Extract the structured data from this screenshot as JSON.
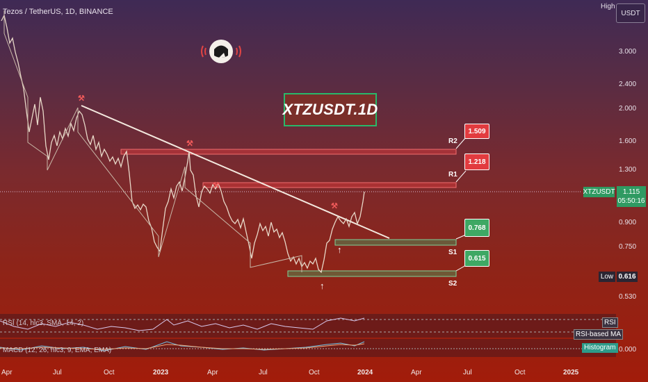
{
  "symbol_title": "Tezos / TetherUS, 1D, BINANCE",
  "scale": {
    "high_label": "High",
    "unit": "USDT",
    "low_label": "Low",
    "low_value": "0.616"
  },
  "y_ticks": [
    "3.000",
    "2.400",
    "2.000",
    "1.600",
    "1.300",
    "0.900",
    "0.750",
    "0.530"
  ],
  "x_ticks": [
    "Apr",
    "Jul",
    "Oct",
    "2023",
    "Apr",
    "Jul",
    "Oct",
    "2024",
    "Apr",
    "Jul",
    "Oct",
    "2025"
  ],
  "watermark_text": "XTZUSDT.1D",
  "levels": {
    "r2": {
      "name": "R2",
      "value": "1.509"
    },
    "r1": {
      "name": "R1",
      "value": "1.218"
    },
    "s1": {
      "name": "S1",
      "value": "0.768"
    },
    "s2": {
      "name": "S2",
      "value": "0.615"
    }
  },
  "current": {
    "symbol": "XTZUSDT",
    "price": "1.115",
    "countdown": "05:50:16"
  },
  "panes": {
    "rsi_label": "RSI (14, hlc3, SMA, 14, 2)",
    "rsi_tag": "RSI",
    "rsi_ma_label": "RSI-based MA",
    "macd_label": "MACD (12, 26, hlc3, 9, EMA, EMA)",
    "hist_tag": "Histogram",
    "macd_zero": "0.000"
  },
  "colors": {
    "support": "#3ea864",
    "resistance": "#e23b3f",
    "ticker_border": "#29b86a"
  }
}
